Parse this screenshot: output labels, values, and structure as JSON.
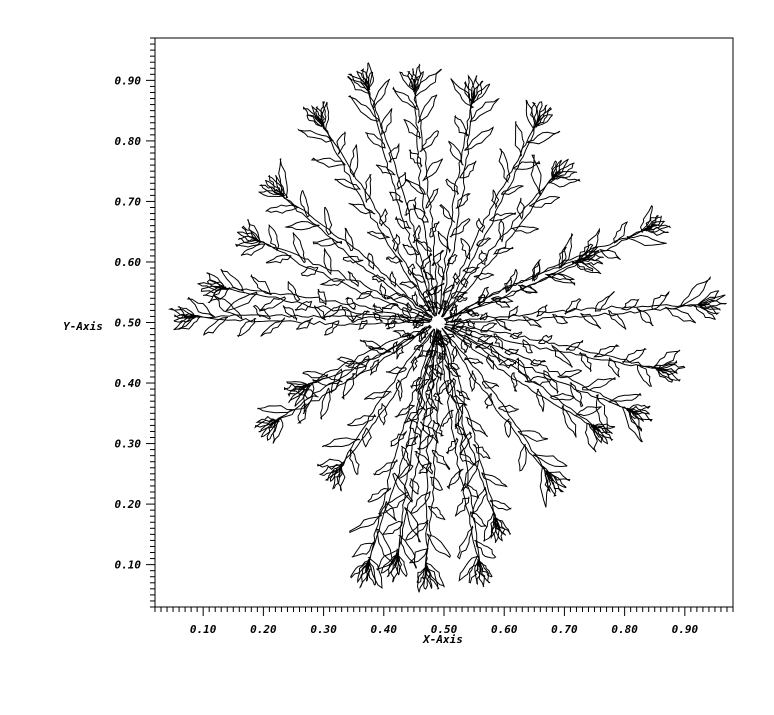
{
  "chart_data": {
    "type": "line",
    "title": "",
    "xlabel": "X-Axis",
    "ylabel": "Y-Axis",
    "xlim": [
      0.02,
      0.98
    ],
    "ylim": [
      0.03,
      0.97
    ],
    "x_ticks": [
      "0.10",
      "0.20",
      "0.30",
      "0.40",
      "0.50",
      "0.60",
      "0.70",
      "0.80",
      "0.90"
    ],
    "y_ticks": [
      "0.10",
      "0.20",
      "0.30",
      "0.40",
      "0.50",
      "0.60",
      "0.70",
      "0.80",
      "0.90"
    ],
    "minor_tick_step": 0.01,
    "grid": false,
    "legend": "none",
    "line_color": "#000000",
    "content": "dendritic contour",
    "center": [
      0.49,
      0.5
    ],
    "arms": [
      {
        "tip": [
          0.07,
          0.51
        ]
      },
      {
        "tip": [
          0.21,
          0.33
        ]
      },
      {
        "tip": [
          0.26,
          0.39
        ]
      },
      {
        "tip": [
          0.32,
          0.25
        ]
      },
      {
        "tip": [
          0.37,
          0.09
        ]
      },
      {
        "tip": [
          0.42,
          0.1
        ]
      },
      {
        "tip": [
          0.47,
          0.08
        ]
      },
      {
        "tip": [
          0.56,
          0.09
        ]
      },
      {
        "tip": [
          0.59,
          0.16
        ]
      },
      {
        "tip": [
          0.68,
          0.24
        ]
      },
      {
        "tip": [
          0.76,
          0.32
        ]
      },
      {
        "tip": [
          0.82,
          0.35
        ]
      },
      {
        "tip": [
          0.87,
          0.42
        ]
      },
      {
        "tip": [
          0.94,
          0.53
        ]
      },
      {
        "tip": [
          0.85,
          0.66
        ]
      },
      {
        "tip": [
          0.74,
          0.61
        ]
      },
      {
        "tip": [
          0.69,
          0.75
        ]
      },
      {
        "tip": [
          0.66,
          0.84
        ]
      },
      {
        "tip": [
          0.55,
          0.88
        ]
      },
      {
        "tip": [
          0.45,
          0.9
        ]
      },
      {
        "tip": [
          0.37,
          0.9
        ]
      },
      {
        "tip": [
          0.29,
          0.84
        ]
      },
      {
        "tip": [
          0.22,
          0.72
        ]
      },
      {
        "tip": [
          0.18,
          0.64
        ]
      },
      {
        "tip": [
          0.12,
          0.56
        ]
      }
    ]
  }
}
